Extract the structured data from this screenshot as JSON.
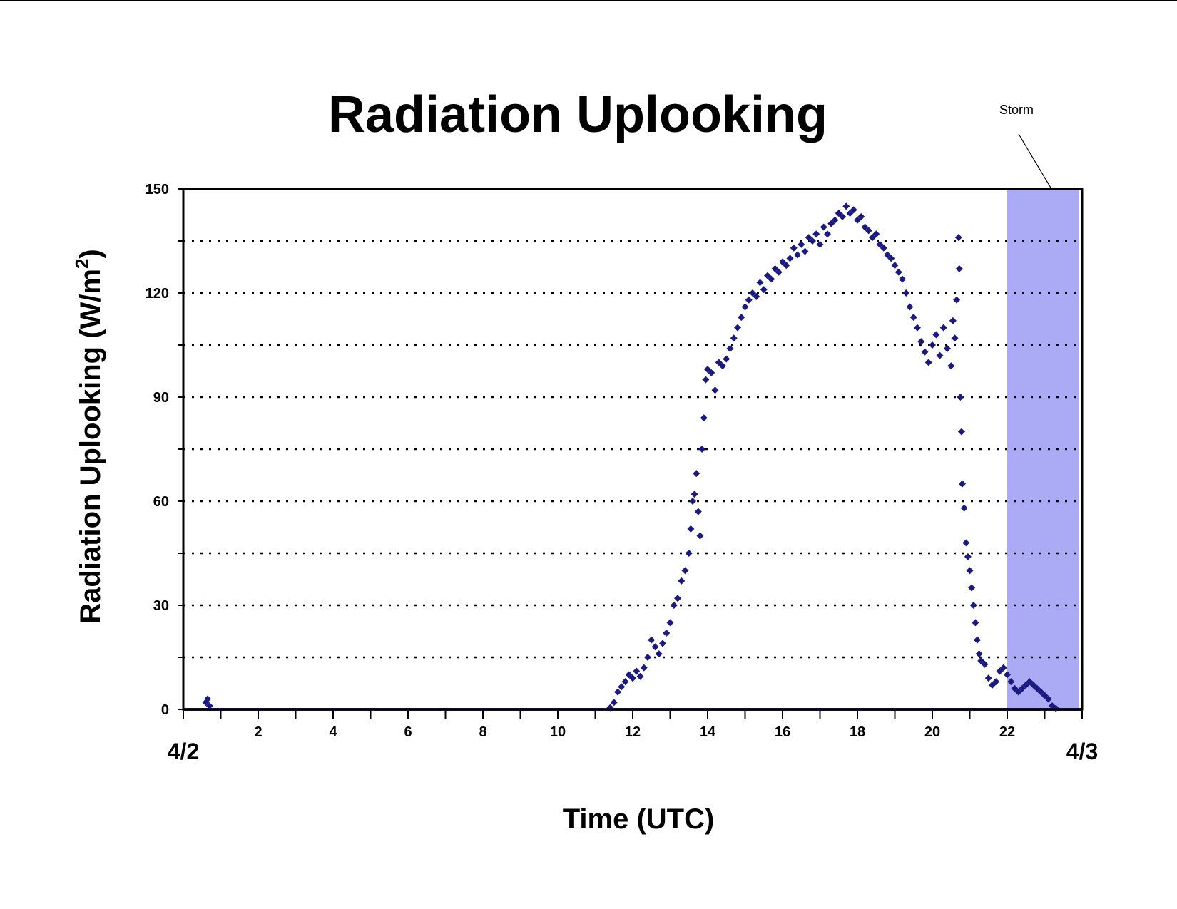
{
  "chart_data": {
    "type": "scatter",
    "title": "Radiation Uplooking",
    "xlabel": "Time (UTC)",
    "ylabel_main": "Radiation Uplooking (W/m",
    "ylabel_sup": "2",
    "ylabel_close": ")",
    "xlim": [
      0,
      24
    ],
    "ylim": [
      0,
      150
    ],
    "x_tick_labels": [
      {
        "value": 2,
        "label": "2"
      },
      {
        "value": 4,
        "label": "4"
      },
      {
        "value": 6,
        "label": "6"
      },
      {
        "value": 8,
        "label": "8"
      },
      {
        "value": 10,
        "label": "10"
      },
      {
        "value": 12,
        "label": "12"
      },
      {
        "value": 14,
        "label": "14"
      },
      {
        "value": 16,
        "label": "16"
      },
      {
        "value": 18,
        "label": "18"
      },
      {
        "value": 20,
        "label": "20"
      },
      {
        "value": 22,
        "label": "22"
      }
    ],
    "x_minor_ticks": [
      1,
      3,
      5,
      7,
      9,
      11,
      13,
      15,
      17,
      19,
      21,
      23
    ],
    "y_tick_labels": [
      {
        "value": 0,
        "label": "0"
      },
      {
        "value": 30,
        "label": "30"
      },
      {
        "value": 60,
        "label": "60"
      },
      {
        "value": 90,
        "label": "90"
      },
      {
        "value": 120,
        "label": "120"
      },
      {
        "value": 150,
        "label": "150"
      }
    ],
    "gridlines_y": [
      15,
      30,
      45,
      60,
      75,
      90,
      105,
      120,
      135
    ],
    "grid": "dotted horizontal",
    "date_labels": [
      {
        "value": 0,
        "label": "4/2"
      },
      {
        "value": 24,
        "label": "4/3"
      }
    ],
    "storm_region": {
      "x_start": 22,
      "x_end": 24,
      "color": "#aaaaf5",
      "label": "Storm"
    },
    "marker_color": "#1a1a80",
    "series": [
      {
        "marker": "diamond",
        "points": [
          [
            0.6,
            2
          ],
          [
            0.65,
            3
          ],
          [
            0.7,
            1
          ],
          [
            11.4,
            0.5
          ],
          [
            11.5,
            2
          ],
          [
            11.6,
            5
          ],
          [
            11.7,
            6.5
          ],
          [
            11.8,
            8
          ],
          [
            11.9,
            10
          ],
          [
            12.0,
            9
          ],
          [
            12.1,
            11
          ],
          [
            12.2,
            9.5
          ],
          [
            12.3,
            12
          ],
          [
            12.4,
            15
          ],
          [
            12.5,
            20
          ],
          [
            12.6,
            18
          ],
          [
            12.7,
            16
          ],
          [
            12.8,
            19
          ],
          [
            12.9,
            22
          ],
          [
            13.0,
            25
          ],
          [
            13.1,
            30
          ],
          [
            13.2,
            32
          ],
          [
            13.3,
            37
          ],
          [
            13.4,
            40
          ],
          [
            13.5,
            45
          ],
          [
            13.55,
            52
          ],
          [
            13.6,
            60
          ],
          [
            13.65,
            62
          ],
          [
            13.7,
            68
          ],
          [
            13.75,
            57
          ],
          [
            13.8,
            50
          ],
          [
            13.85,
            75
          ],
          [
            13.9,
            84
          ],
          [
            13.95,
            95
          ],
          [
            14.0,
            98
          ],
          [
            14.1,
            97
          ],
          [
            14.2,
            92
          ],
          [
            14.3,
            100
          ],
          [
            14.4,
            99
          ],
          [
            14.5,
            101
          ],
          [
            14.6,
            104
          ],
          [
            14.7,
            107
          ],
          [
            14.8,
            110
          ],
          [
            14.9,
            113
          ],
          [
            15.0,
            116
          ],
          [
            15.1,
            118
          ],
          [
            15.2,
            120
          ],
          [
            15.3,
            119
          ],
          [
            15.4,
            123
          ],
          [
            15.5,
            121
          ],
          [
            15.6,
            125
          ],
          [
            15.7,
            124
          ],
          [
            15.8,
            127
          ],
          [
            15.9,
            126
          ],
          [
            16.0,
            129
          ],
          [
            16.1,
            128
          ],
          [
            16.2,
            130
          ],
          [
            16.3,
            133
          ],
          [
            16.4,
            131
          ],
          [
            16.5,
            134
          ],
          [
            16.6,
            132
          ],
          [
            16.7,
            136
          ],
          [
            16.8,
            135
          ],
          [
            16.9,
            137
          ],
          [
            17.0,
            134
          ],
          [
            17.1,
            139
          ],
          [
            17.2,
            137
          ],
          [
            17.3,
            140
          ],
          [
            17.4,
            141
          ],
          [
            17.5,
            143
          ],
          [
            17.6,
            142
          ],
          [
            17.7,
            145
          ],
          [
            17.8,
            143
          ],
          [
            17.9,
            144
          ],
          [
            18.0,
            141
          ],
          [
            18.1,
            142
          ],
          [
            18.2,
            139
          ],
          [
            18.3,
            138
          ],
          [
            18.4,
            136
          ],
          [
            18.5,
            137
          ],
          [
            18.6,
            134
          ],
          [
            18.7,
            133
          ],
          [
            18.8,
            131
          ],
          [
            18.9,
            130
          ],
          [
            19.0,
            128
          ],
          [
            19.1,
            126
          ],
          [
            19.2,
            124
          ],
          [
            19.3,
            120
          ],
          [
            19.4,
            116
          ],
          [
            19.5,
            113
          ],
          [
            19.6,
            110
          ],
          [
            19.7,
            106
          ],
          [
            19.8,
            103
          ],
          [
            19.9,
            100
          ],
          [
            20.0,
            105
          ],
          [
            20.1,
            108
          ],
          [
            20.2,
            102
          ],
          [
            20.3,
            110
          ],
          [
            20.4,
            104
          ],
          [
            20.5,
            99
          ],
          [
            20.55,
            112
          ],
          [
            20.6,
            107
          ],
          [
            20.65,
            118
          ],
          [
            20.7,
            136
          ],
          [
            20.72,
            127
          ],
          [
            20.75,
            90
          ],
          [
            20.78,
            80
          ],
          [
            20.8,
            65
          ],
          [
            20.85,
            58
          ],
          [
            20.9,
            48
          ],
          [
            20.95,
            44
          ],
          [
            21.0,
            40
          ],
          [
            21.05,
            35
          ],
          [
            21.1,
            30
          ],
          [
            21.15,
            25
          ],
          [
            21.2,
            20
          ],
          [
            21.25,
            16
          ],
          [
            21.3,
            14
          ],
          [
            21.4,
            13
          ],
          [
            21.5,
            9
          ],
          [
            21.6,
            7
          ],
          [
            21.7,
            8
          ],
          [
            21.8,
            11
          ],
          [
            21.9,
            12
          ],
          [
            22.0,
            10
          ],
          [
            22.1,
            8
          ],
          [
            22.2,
            6
          ],
          [
            22.3,
            5
          ],
          [
            22.4,
            6
          ],
          [
            22.5,
            7
          ],
          [
            22.6,
            8
          ],
          [
            22.7,
            7
          ],
          [
            22.8,
            6
          ],
          [
            22.9,
            5
          ],
          [
            23.0,
            4
          ],
          [
            23.1,
            3
          ],
          [
            23.2,
            1
          ],
          [
            23.3,
            0.3
          ]
        ]
      }
    ]
  }
}
